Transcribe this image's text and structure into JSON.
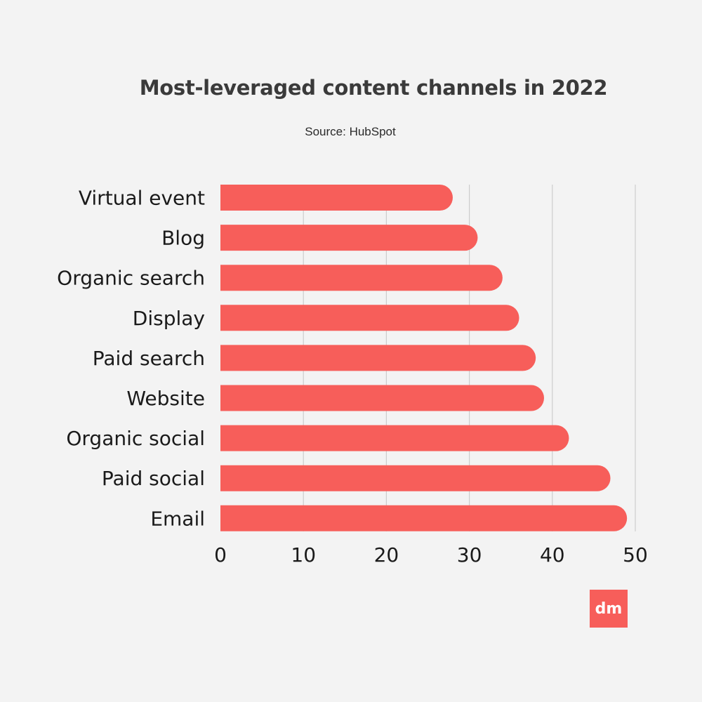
{
  "chart_data": {
    "type": "bar",
    "orientation": "horizontal",
    "title": "Most-leveraged content channels in 2022",
    "subtitle": "Source: HubSpot",
    "categories": [
      "Virtual event",
      "Blog",
      "Organic search",
      "Display",
      "Paid search",
      "Website",
      "Organic social",
      "Paid social",
      "Email"
    ],
    "values": [
      28,
      31,
      34,
      36,
      38,
      39,
      42,
      47,
      49
    ],
    "xlim": [
      0,
      50
    ],
    "xticks": [
      "0",
      "10",
      "20",
      "30",
      "40",
      "50"
    ],
    "grid": "vertical",
    "bar_color": "#f75e5a",
    "grid_color": "#cccccc"
  },
  "logo": {
    "text": "dm",
    "color": "#f75e5a"
  }
}
